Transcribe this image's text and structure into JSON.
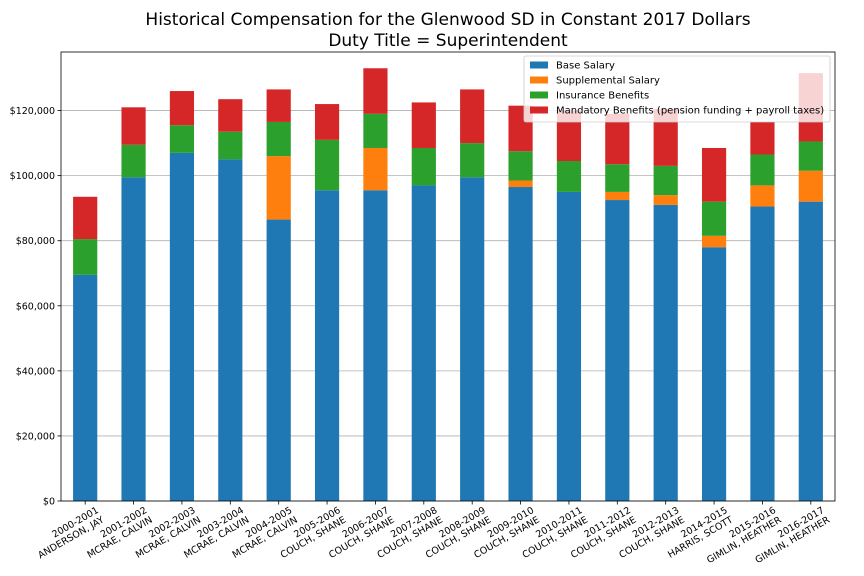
{
  "chart_data": {
    "type": "bar",
    "stacked": true,
    "title": "Historical Compensation for the Glenwood SD in Constant 2017 Dollars",
    "subtitle": "Duty Title = Superintendent",
    "xlabel": "",
    "ylabel": "",
    "ylim": [
      0,
      138000
    ],
    "yticks": [
      0,
      20000,
      40000,
      60000,
      80000,
      100000,
      120000
    ],
    "ytick_labels": [
      "$0",
      "$20,000",
      "$40,000",
      "$60,000",
      "$80,000",
      "$100,000",
      "$120,000"
    ],
    "grid": "horizontal",
    "legend_position": "top-right",
    "categories": [
      [
        "2000-2001",
        "ANDERSON, JAY"
      ],
      [
        "2001-2002",
        "MCRAE, CALVIN"
      ],
      [
        "2002-2003",
        "MCRAE, CALVIN"
      ],
      [
        "2003-2004",
        "MCRAE, CALVIN"
      ],
      [
        "2004-2005",
        "MCRAE, CALVIN"
      ],
      [
        "2005-2006",
        "COUCH, SHANE"
      ],
      [
        "2006-2007",
        "COUCH, SHANE"
      ],
      [
        "2007-2008",
        "COUCH, SHANE"
      ],
      [
        "2008-2009",
        "COUCH, SHANE"
      ],
      [
        "2009-2010",
        "COUCH, SHANE"
      ],
      [
        "2010-2011",
        "COUCH, SHANE"
      ],
      [
        "2011-2012",
        "COUCH, SHANE"
      ],
      [
        "2012-2013",
        "COUCH, SHANE"
      ],
      [
        "2014-2015",
        "HARRIS, SCOTT"
      ],
      [
        "2015-2016",
        "GIMLIN, HEATHER"
      ],
      [
        "2016-2017",
        "GIMLIN, HEATHER"
      ]
    ],
    "series": [
      {
        "name": "Base Salary",
        "color": "#1f77b4",
        "values": [
          69500,
          99500,
          107000,
          105000,
          86500,
          95500,
          95500,
          97000,
          99500,
          96500,
          95000,
          92500,
          91000,
          78000,
          90500,
          92000
        ]
      },
      {
        "name": "Supplemental Salary",
        "color": "#ff7f0e",
        "values": [
          0,
          0,
          0,
          0,
          19500,
          0,
          13000,
          0,
          0,
          2000,
          0,
          2500,
          3000,
          3500,
          6500,
          9500
        ]
      },
      {
        "name": "Insurance Benefits",
        "color": "#2ca02c",
        "values": [
          11000,
          10000,
          8500,
          8500,
          10500,
          15500,
          10500,
          11500,
          10500,
          9000,
          9500,
          8500,
          9000,
          10500,
          9500,
          9000
        ]
      },
      {
        "name": "Mandatory Benefits (pension funding + payroll taxes)",
        "color": "#d62728",
        "values": [
          13000,
          11500,
          10500,
          10000,
          10000,
          11000,
          14000,
          14000,
          16500,
          14000,
          15500,
          15500,
          17500,
          16500,
          10000,
          21000
        ]
      }
    ]
  }
}
